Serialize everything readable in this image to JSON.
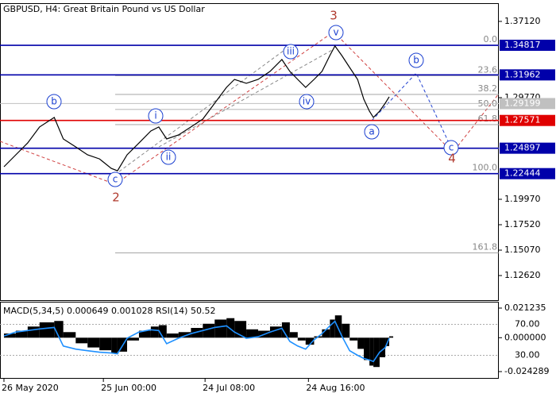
{
  "chart_data": [
    {
      "type": "line",
      "title": "GBPUSD, H4:  Great Britain Pound vs US Dollar",
      "x": [
        0,
        21,
        42,
        63,
        89,
        105,
        127,
        148,
        169,
        190,
        201,
        218,
        239,
        260,
        274,
        288,
        309,
        331,
        352,
        373,
        394,
        408,
        429,
        450,
        471,
        492,
        506,
        520,
        534,
        549,
        563,
        577,
        586,
        598,
        612,
        626,
        637,
        647,
        654,
        665,
        675,
        682
      ],
      "values": [
        1.2311,
        1.2426,
        1.254,
        1.2694,
        1.2786,
        1.2579,
        1.2502,
        1.2426,
        1.2387,
        1.2295,
        1.2272,
        1.2426,
        1.254,
        1.2655,
        1.2694,
        1.2579,
        1.2617,
        1.2694,
        1.277,
        1.2923,
        1.3076,
        1.3153,
        1.3115,
        1.3153,
        1.323,
        1.3344,
        1.323,
        1.3153,
        1.3076,
        1.3153,
        1.323,
        1.3383,
        1.3475,
        1.3383,
        1.3268,
        1.3153,
        1.2962,
        1.2847,
        1.2786,
        1.2847,
        1.2923,
        1.2985
      ],
      "color": "#000000",
      "xlim": [
        -7,
        876
      ],
      "xticks": [
        {
          "value": 0,
          "label": "26 May 2020"
        },
        {
          "value": 176,
          "label": "25 Jun 00:00"
        },
        {
          "value": 356,
          "label": "24 Jul 08:00"
        },
        {
          "value": 539,
          "label": "24 Aug 16:00"
        }
      ],
      "ylim": [
        1.1025,
        1.388
      ],
      "yticks": [
        {
          "value": 1.3712,
          "label": "1.37120"
        },
        {
          "value": 1.2977,
          "label": "1.29770"
        },
        {
          "value": 1.1997,
          "label": "1.19970"
        },
        {
          "value": 1.1752,
          "label": "1.17520"
        },
        {
          "value": 1.1507,
          "label": "1.15070"
        },
        {
          "value": 1.1262,
          "label": "1.12620"
        }
      ],
      "levels": [
        {
          "value": 1.34817,
          "color": "#0000aa"
        },
        {
          "value": 1.31962,
          "color": "#0000aa"
        },
        {
          "value": 1.29199,
          "color": "#c0c0c0"
        },
        {
          "value": 1.27571,
          "color": "#e00000"
        },
        {
          "value": 1.24897,
          "color": "#0000aa"
        },
        {
          "value": 1.22444,
          "color": "#0000aa"
        }
      ],
      "fib_levels": [
        {
          "value": 1.34817,
          "label": "0.0"
        },
        {
          "value": 1.3189,
          "label": "23.6"
        },
        {
          "value": 1.3008,
          "label": "38.2"
        },
        {
          "value": 1.2863,
          "label": "50.0"
        },
        {
          "value": 1.2717,
          "label": "61.8"
        },
        {
          "value": 1.22444,
          "label": "100.0"
        },
        {
          "value": 1.148,
          "label": "161.8"
        }
      ],
      "waves": [
        "b",
        "c",
        "i",
        "ii",
        "iii",
        "iv",
        "v",
        "a",
        "b",
        "c"
      ],
      "wave_degrees": [
        "2",
        "3",
        "4"
      ]
    },
    {
      "type": "bar",
      "title": "MACD(5,34,5) 0.000649 0.001028 RSI(14) 50.52",
      "series": [
        {
          "color": "#000000",
          "values": [
            0.003,
            0.005,
            0.008,
            0.011,
            0.012,
            0.004,
            -0.004,
            -0.007,
            -0.009,
            -0.011,
            -0.01,
            -0.002,
            0.005,
            0.008,
            0.009,
            0.003,
            0.004,
            0.007,
            0.01,
            0.013,
            0.014,
            0.012,
            0.006,
            0.005,
            0.008,
            0.011,
            0.004,
            -0.002,
            -0.005,
            0.001,
            0.006,
            0.013,
            0.016,
            0.01,
            -0.002,
            -0.008,
            -0.016,
            -0.02,
            -0.021,
            -0.014,
            -0.006,
            0.001
          ]
        },
        {
          "color": "#1e90ff",
          "axis": "y2",
          "values": [
            55,
            60,
            62,
            64,
            66,
            42,
            38,
            36,
            34,
            33,
            32,
            52,
            60,
            63,
            62,
            45,
            52,
            58,
            62,
            66,
            68,
            60,
            52,
            54,
            60,
            65,
            48,
            42,
            38,
            50,
            58,
            68,
            74,
            55,
            36,
            30,
            26,
            24,
            22,
            34,
            40,
            52
          ]
        }
      ],
      "ylim": [
        -0.024289,
        0.021235
      ],
      "yticks": [
        0.021235,
        {
          "value": 0,
          "label": "0.000000"
        },
        -0.024289
      ],
      "y2lim": [
        9,
        91
      ],
      "y2ticks": [
        {
          "value": 70,
          "label": "70.00"
        },
        {
          "value": 30,
          "label": "30.00"
        }
      ]
    }
  ]
}
